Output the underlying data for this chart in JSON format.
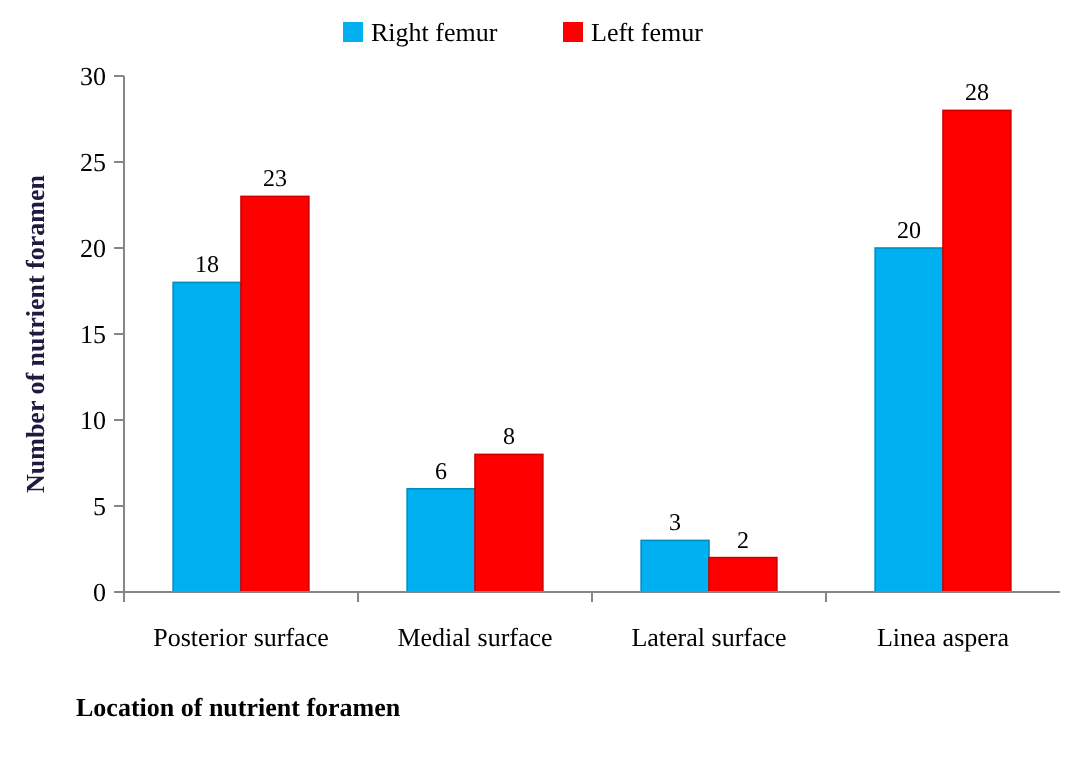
{
  "chart_data": {
    "type": "bar",
    "xlabel": "Location of nutrient  foramen",
    "ylabel": "Number of nutrient  foramen",
    "categories": [
      "Posterior surface",
      "Medial surface",
      "Lateral surface",
      "Linea aspera"
    ],
    "series": [
      {
        "name": "Right femur",
        "color": "#00b0f0",
        "values": [
          18,
          6,
          3,
          20
        ]
      },
      {
        "name": "Left femur",
        "color": "#ff0000",
        "values": [
          23,
          8,
          2,
          28
        ]
      }
    ],
    "ylim": [
      0,
      30
    ],
    "yticks": [
      0,
      5,
      10,
      15,
      20,
      25,
      30
    ],
    "grid": false,
    "legend": "top",
    "data_labels": true
  }
}
